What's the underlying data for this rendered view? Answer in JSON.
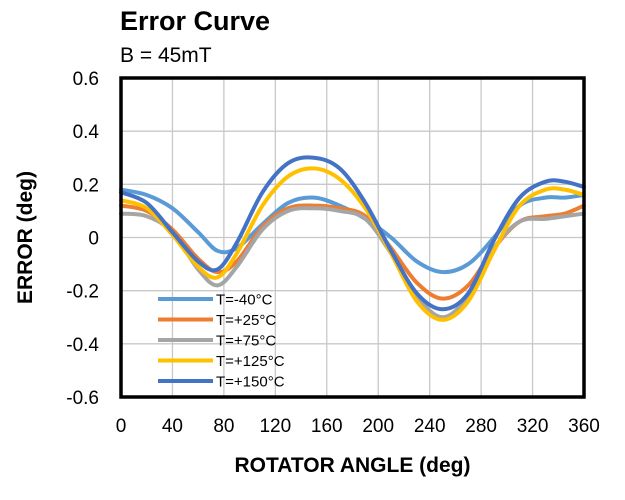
{
  "chart_data": {
    "type": "line",
    "title": "Error Curve",
    "subtitle": "B = 45mT",
    "xlabel": "ROTATOR ANGLE (deg)",
    "ylabel": "ERROR (deg)",
    "xlim": [
      0,
      360
    ],
    "ylim": [
      -0.6,
      0.6
    ],
    "xticks": [
      0,
      40,
      80,
      120,
      160,
      200,
      240,
      280,
      320,
      360
    ],
    "yticks": [
      0.6,
      0.4,
      0.2,
      0,
      -0.2,
      -0.4,
      -0.6
    ],
    "xtick_labels": [
      "0",
      "40",
      "80",
      "120",
      "160",
      "200",
      "240",
      "280",
      "320",
      "360"
    ],
    "ytick_labels": [
      "0.6",
      "0.4",
      "0.2",
      "0",
      "-0.2",
      "-0.4",
      "-0.6"
    ],
    "grid": true,
    "legend_position": "bottom-left",
    "x": [
      0,
      20,
      40,
      60,
      75,
      90,
      110,
      130,
      150,
      170,
      190,
      210,
      230,
      250,
      270,
      290,
      310,
      330,
      345,
      360
    ],
    "series": [
      {
        "name": "T=-40°C",
        "color": "#5B9BD5",
        "values": [
          0.18,
          0.16,
          0.11,
          0.02,
          -0.05,
          -0.04,
          0.05,
          0.13,
          0.15,
          0.12,
          0.07,
          0.0,
          -0.09,
          -0.13,
          -0.1,
          0.0,
          0.12,
          0.15,
          0.15,
          0.16
        ]
      },
      {
        "name": "T=+25°C",
        "color": "#ED7D31",
        "values": [
          0.12,
          0.1,
          0.03,
          -0.08,
          -0.13,
          -0.09,
          0.04,
          0.11,
          0.12,
          0.11,
          0.08,
          -0.04,
          -0.17,
          -0.23,
          -0.18,
          -0.04,
          0.06,
          0.08,
          0.09,
          0.12
        ]
      },
      {
        "name": "T=+75°C",
        "color": "#A5A5A5",
        "values": [
          0.09,
          0.08,
          0.02,
          -0.12,
          -0.18,
          -0.11,
          0.03,
          0.1,
          0.11,
          0.1,
          0.07,
          -0.06,
          -0.22,
          -0.3,
          -0.22,
          -0.04,
          0.06,
          0.07,
          0.08,
          0.09
        ]
      },
      {
        "name": "T=+125°C",
        "color": "#FFC000",
        "values": [
          0.14,
          0.11,
          0.01,
          -0.11,
          -0.15,
          -0.06,
          0.12,
          0.23,
          0.26,
          0.22,
          0.11,
          -0.06,
          -0.24,
          -0.31,
          -0.24,
          -0.05,
          0.12,
          0.18,
          0.18,
          0.16
        ]
      },
      {
        "name": "T=+150°C",
        "color": "#4472C4",
        "values": [
          0.17,
          0.13,
          0.02,
          -0.09,
          -0.12,
          -0.02,
          0.17,
          0.28,
          0.3,
          0.26,
          0.13,
          -0.05,
          -0.21,
          -0.27,
          -0.21,
          -0.01,
          0.15,
          0.21,
          0.21,
          0.19
        ]
      }
    ]
  }
}
